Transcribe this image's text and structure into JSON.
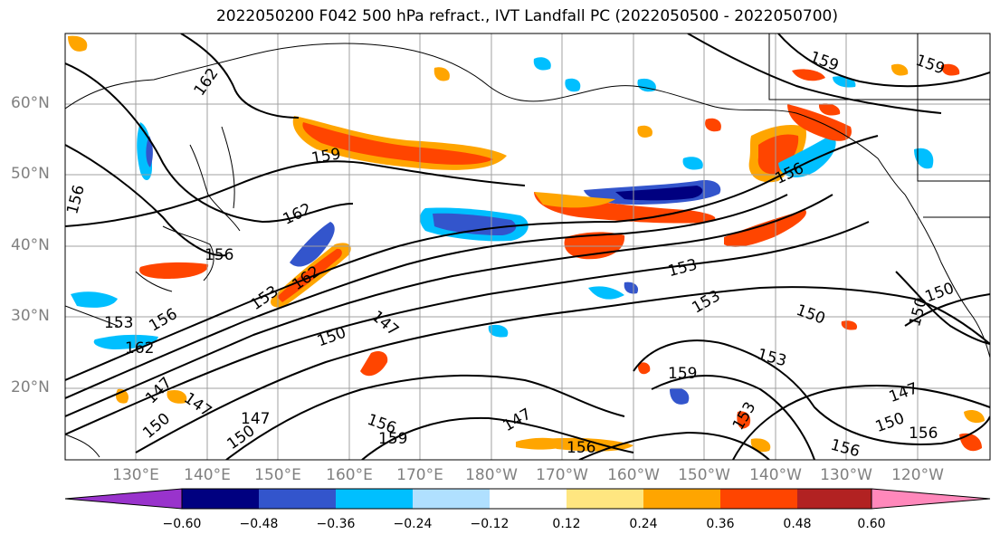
{
  "title": "2022050200 F042 500 hPa refract., IVT Landfall PC (2022050500 - 2022050700)",
  "map": {
    "lat_labels": [
      "60°N",
      "50°N",
      "40°N",
      "30°N",
      "20°N"
    ],
    "lon_labels": [
      "130°E",
      "140°E",
      "150°E",
      "160°E",
      "170°E",
      "180°W",
      "170°W",
      "160°W",
      "150°W",
      "140°W",
      "130°W",
      "120°W"
    ],
    "contour_labels": [
      "162",
      "159",
      "162",
      "156",
      "156",
      "153",
      "156",
      "153",
      "162",
      "150",
      "147",
      "147",
      "150",
      "147",
      "150",
      "147",
      "156",
      "159",
      "147",
      "156",
      "153",
      "159",
      "153",
      "150",
      "153",
      "156",
      "150",
      "147",
      "150",
      "156",
      "159",
      "153",
      "150",
      "156",
      "159",
      "162"
    ],
    "colors": {
      "coastline": "#000000",
      "grid": "#a0a0a0",
      "contour": "#000000"
    }
  },
  "colorbar": {
    "bins": [
      {
        "color": "#9933cc"
      },
      {
        "color": "#000080"
      },
      {
        "color": "#3355cc"
      },
      {
        "color": "#00bfff"
      },
      {
        "color": "#b0e0ff"
      },
      {
        "color": "#ffffff"
      },
      {
        "color": "#ffe680"
      },
      {
        "color": "#ffa500"
      },
      {
        "color": "#ff4500"
      },
      {
        "color": "#b22222"
      },
      {
        "color": "#ff88bb"
      }
    ],
    "ticks": [
      "−0.60",
      "−0.48",
      "−0.36",
      "−0.24",
      "−0.12",
      "0.12",
      "0.24",
      "0.36",
      "0.48",
      "0.60"
    ]
  }
}
